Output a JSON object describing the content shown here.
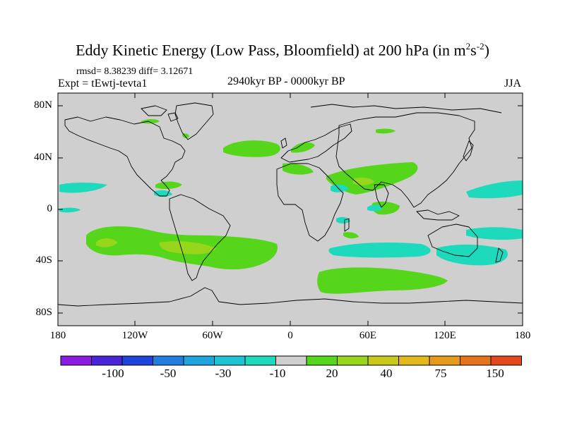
{
  "title": {
    "main": "Eddy Kinetic Energy (Low Pass, Bloomfield) at 200 hPa (in m",
    "sup1": "2",
    "mid": "s",
    "sup2": "-2",
    "close": ")"
  },
  "stats": "rmsd= 8.38239 diff= 3.12671",
  "experiment": "Expt = tEwtj-tevta1",
  "center_title": "2940kyr BP - 0000kyr BP",
  "season": "JJA",
  "lat_labels": [
    "80N",
    "40N",
    "0",
    "40S",
    "80S"
  ],
  "lon_labels": [
    "180",
    "120W",
    "60W",
    "0",
    "60E",
    "120E",
    "180"
  ],
  "colorbar": {
    "labels": [
      "-100",
      "-50",
      "-30",
      "-10",
      "20",
      "40",
      "75",
      "150"
    ],
    "colors": [
      "#8a1be0",
      "#4a24d8",
      "#1f44dc",
      "#1e7fe0",
      "#1ea5de",
      "#1ec3d2",
      "#1cdabb",
      "#cfcfcf",
      "#55d61b",
      "#98d61b",
      "#c9c81b",
      "#e2b81b",
      "#e69a1b",
      "#e4731b",
      "#e2481b"
    ]
  },
  "map": {
    "ocean_color": "#cfcfcf",
    "anomaly_colors": {
      "cyan": "#1cdabb",
      "green": "#55d61b",
      "yellow_green": "#98d61b",
      "yellow": "#c9c81b"
    }
  }
}
